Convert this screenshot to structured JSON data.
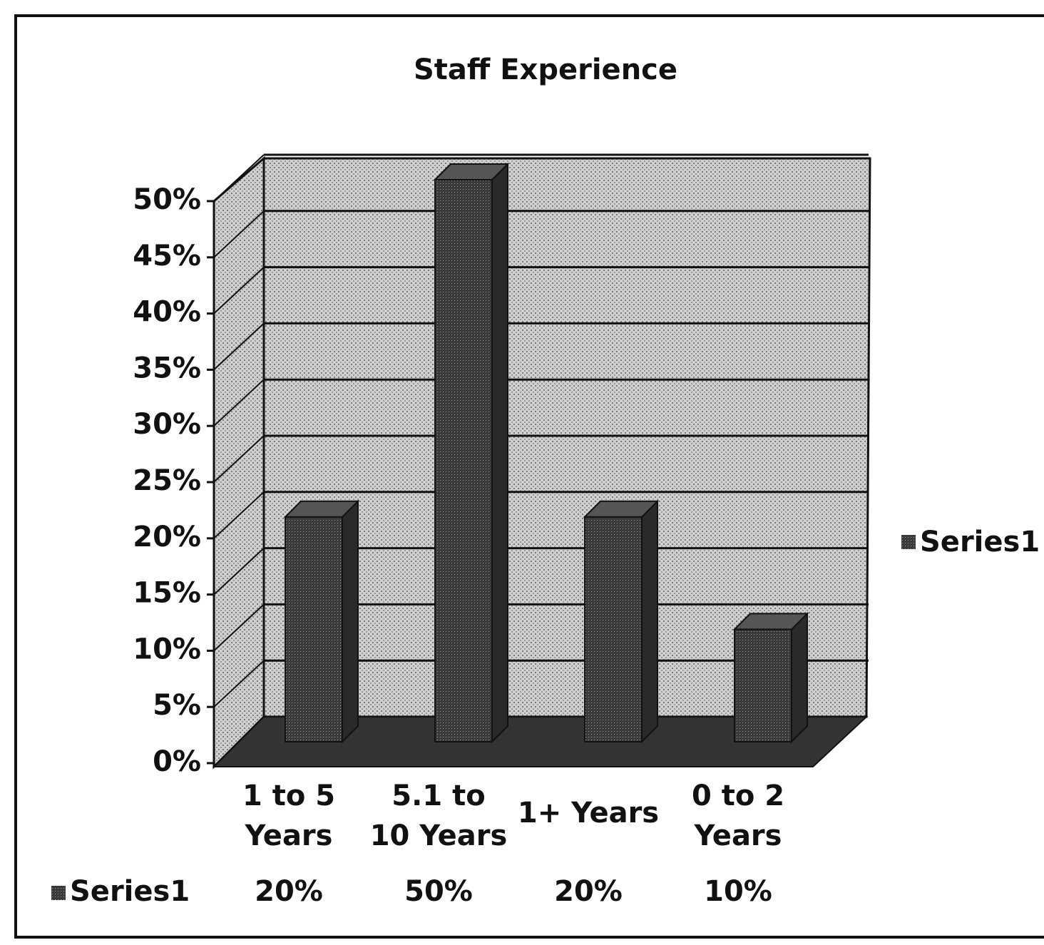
{
  "chart_data": {
    "type": "bar3d",
    "title": "Staff Experience",
    "categories": [
      "1 to 5 Years",
      "5.1 to 10 Years",
      "1+ Years",
      "0 to 2 Years"
    ],
    "series": [
      {
        "name": "Series1",
        "color": "#2a2a2a",
        "values": [
          20,
          50,
          20,
          10
        ],
        "value_labels": [
          "20%",
          "50%",
          "20%",
          "10%"
        ]
      }
    ],
    "ylim": [
      0,
      50
    ],
    "yticks": [
      {
        "value": 0,
        "label": "0%"
      },
      {
        "value": 5,
        "label": "5%"
      },
      {
        "value": 10,
        "label": "10%"
      },
      {
        "value": 15,
        "label": "15%"
      },
      {
        "value": 20,
        "label": "20%"
      },
      {
        "value": 25,
        "label": "25%"
      },
      {
        "value": 30,
        "label": "30%"
      },
      {
        "value": 35,
        "label": "35%"
      },
      {
        "value": 40,
        "label": "40%"
      },
      {
        "value": 45,
        "label": "45%"
      },
      {
        "value": 50,
        "label": "50%"
      }
    ],
    "grid": true,
    "legend": "right"
  }
}
